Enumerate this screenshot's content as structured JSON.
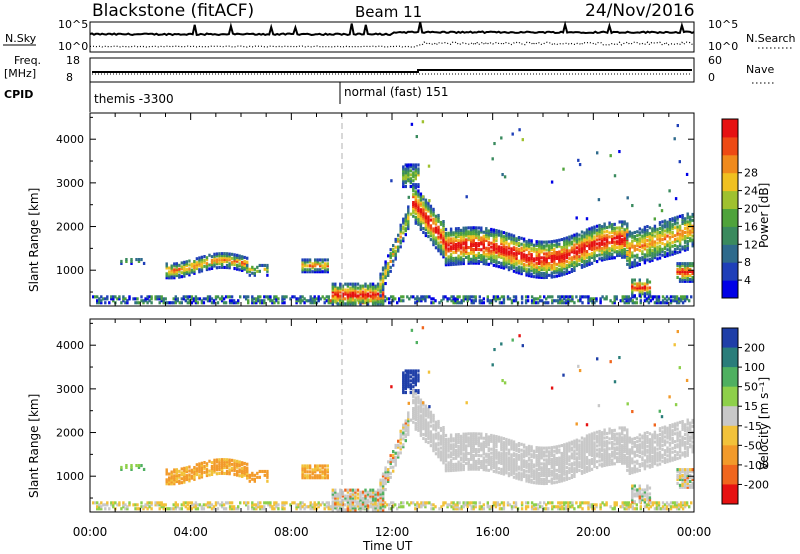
{
  "header": {
    "station": "Blackstone (fitACF)",
    "beam": "Beam 11",
    "date": "24/Nov/2016"
  },
  "top_panels": {
    "nsky_label": "N.Sky",
    "nsky_ticks": [
      "10^5",
      "10^0"
    ],
    "nsearch_label": "N.Search",
    "nsearch_ticks": [
      "10^5",
      "10^0"
    ],
    "freq_label": "Freq.",
    "freq_unit": "[MHz]",
    "freq_ticks": [
      "18",
      "8"
    ],
    "nave_label": "Nave",
    "nave_ticks": [
      "60",
      "0"
    ],
    "cpid_label": "CPID",
    "cpid_segments": [
      {
        "name": "themis -3300",
        "start_hour": 0
      },
      {
        "name": "normal (fast) 151",
        "start_hour": 10
      }
    ]
  },
  "chart_data": [
    {
      "type": "heatmap",
      "title": "Power",
      "xlabel": "Time UT",
      "ylabel": "Slant Range [km]",
      "xlim_hours": [
        0,
        24
      ],
      "ylim": [
        180,
        4600
      ],
      "yticks": [
        "1000",
        "2000",
        "3000",
        "4000"
      ],
      "colorbar_label": "Power [dB]",
      "colorbar_ticks": [
        "4",
        "8",
        "12",
        "16",
        "20",
        "24",
        "28"
      ],
      "colorbar_colors": [
        "#0000e6",
        "#1f3fb8",
        "#2e6a8c",
        "#3a8a5e",
        "#4fa33b",
        "#9fc12f",
        "#f0c020",
        "#f08a1c",
        "#ee4a14",
        "#e61111"
      ]
    },
    {
      "type": "heatmap",
      "title": "Velocity",
      "xlabel": "Time UT",
      "ylabel": "Slant Range [km]",
      "xlim_hours": [
        0,
        24
      ],
      "ylim": [
        180,
        4600
      ],
      "yticks": [
        "1000",
        "2000",
        "3000",
        "4000"
      ],
      "colorbar_label": "Velocity [m s⁻¹]",
      "colorbar_ticks": [
        "200",
        "100",
        "50",
        "15",
        "-15",
        "-50",
        "-100",
        "-200"
      ],
      "colorbar_colors": [
        "#1f3fa8",
        "#2a7d7a",
        "#4fb060",
        "#8ed04a",
        "#c8c8c8",
        "#f2c23a",
        "#f29a2a",
        "#f0661e",
        "#e61111"
      ],
      "xticks": [
        "00:00",
        "04:00",
        "08:00",
        "12:00",
        "16:00",
        "20:00",
        "00:00"
      ]
    }
  ]
}
